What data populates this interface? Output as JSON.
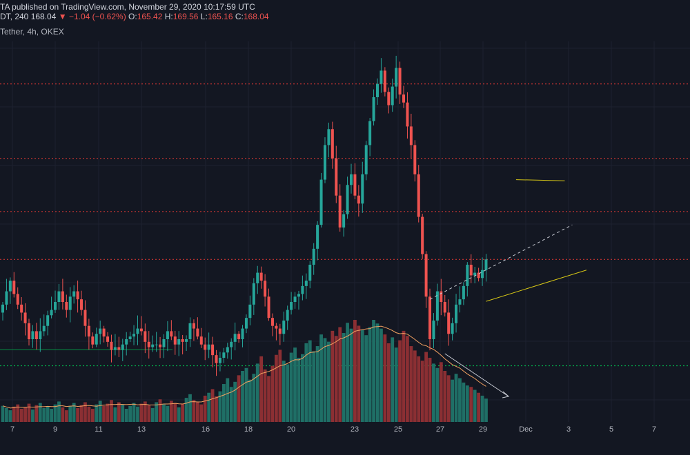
{
  "header": {
    "line1": "TA published on TradingView.com, November 29, 2020 10:17:59 UTC",
    "line2_symbol": "DT, 240",
    "line2_price": "168.04",
    "line2_change": "▼ −1.04 (−0.62%)",
    "line2_ohlc": [
      {
        "label": "O:",
        "value": "165.42"
      },
      {
        "label": "H:",
        "value": "169.56"
      },
      {
        "label": "L:",
        "value": "165.16"
      },
      {
        "label": "C:",
        "value": "168.04"
      }
    ],
    "line3": "Tether, 4h, OKEX"
  },
  "colors": {
    "background": "#131722",
    "up": "#26a69a",
    "down": "#ef5350",
    "vol_up": "#1f6f66",
    "vol_down": "#8b2f33",
    "resistance": "#e53935",
    "support": "#00c853",
    "channel": "#d4c516",
    "grid": "#1e2230"
  },
  "chart_data": {
    "type": "candlestick",
    "symbol": "Tether, 4h, OKEX",
    "x_tick_labels": [
      "7",
      "9",
      "11",
      "13",
      "16",
      "18",
      "20",
      "23",
      "25",
      "27",
      "29",
      "Dec",
      "3",
      "5",
      "7"
    ],
    "price_range": [
      100,
      240
    ],
    "horizontal_levels": [
      {
        "price": 224,
        "style": "dotted",
        "color": "red"
      },
      {
        "price": 196,
        "style": "dotted",
        "color": "red"
      },
      {
        "price": 176,
        "style": "dotted",
        "color": "red"
      },
      {
        "price": 158,
        "style": "dotted",
        "color": "red"
      },
      {
        "price": 118,
        "style": "dotted",
        "color": "green"
      },
      {
        "price": 124,
        "style": "solid",
        "color": "green"
      }
    ],
    "candles_close": [
      141,
      146,
      150,
      145,
      141,
      138,
      134,
      128,
      131,
      128,
      131,
      133,
      137,
      139,
      142,
      146,
      142,
      139,
      144,
      146,
      143,
      139,
      133,
      129,
      126,
      130,
      132,
      129,
      127,
      124,
      125,
      124,
      126,
      128,
      129,
      130,
      132,
      131,
      127,
      125,
      126,
      126,
      125,
      128,
      131,
      129,
      126,
      128,
      127,
      128,
      134,
      132,
      129,
      126,
      124,
      126,
      122,
      119,
      121,
      123,
      125,
      127,
      130,
      128,
      132,
      136,
      141,
      149,
      153,
      150,
      144,
      136,
      133,
      132,
      130,
      135,
      139,
      142,
      144,
      145,
      148,
      150,
      156,
      162,
      171,
      188,
      201,
      207,
      196,
      182,
      170,
      175,
      186,
      190,
      182,
      179,
      190,
      201,
      210,
      219,
      224,
      229,
      221,
      216,
      223,
      230,
      220,
      217,
      208,
      201,
      190,
      174,
      160,
      144,
      128,
      135,
      146,
      142,
      138,
      130,
      134,
      141,
      143,
      148,
      156,
      152,
      153,
      151,
      154,
      158
    ],
    "channel": {
      "upper": [
        [
          137,
          188
        ],
        [
          150,
          172
        ]
      ],
      "lower": [
        [
          129,
          150
        ],
        [
          165,
          240
        ]
      ]
    },
    "volume_ma_peak_index": 110
  },
  "volume": [
    22,
    19,
    16,
    21,
    24,
    18,
    20,
    25,
    17,
    23,
    26,
    19,
    21,
    18,
    24,
    28,
    20,
    16,
    22,
    26,
    19,
    23,
    27,
    21,
    18,
    24,
    29,
    22,
    25,
    30,
    20,
    27,
    24,
    18,
    22,
    26,
    21,
    25,
    28,
    23,
    19,
    27,
    31,
    24,
    22,
    29,
    26,
    20,
    25,
    33,
    38,
    30,
    27,
    24,
    36,
    40,
    45,
    35,
    42,
    52,
    60,
    48,
    55,
    64,
    70,
    74,
    58,
    66,
    80,
    90,
    72,
    63,
    77,
    92,
    99,
    84,
    79,
    95,
    102,
    88,
    93,
    108,
    112,
    97,
    104,
    120,
    115,
    110,
    125,
    118,
    130,
    122,
    136,
    128,
    140,
    132,
    126,
    119,
    130,
    140,
    135,
    128,
    120,
    108,
    116,
    102,
    112,
    125,
    118,
    104,
    98,
    90,
    84,
    96,
    88,
    80,
    74,
    82,
    70,
    64,
    58,
    66,
    60,
    54,
    50,
    48,
    44,
    40,
    36,
    32
  ]
}
